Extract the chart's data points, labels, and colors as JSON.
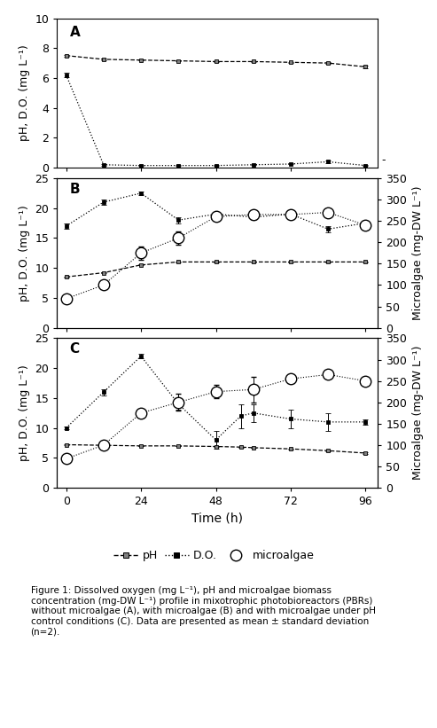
{
  "time_A": [
    0,
    12,
    24,
    36,
    48,
    60,
    72,
    84,
    96
  ],
  "pH_A": [
    7.5,
    7.25,
    7.2,
    7.15,
    7.1,
    7.1,
    7.05,
    7.0,
    6.75
  ],
  "pH_A_err": [
    0.05,
    0.05,
    0.03,
    0.03,
    0.03,
    0.03,
    0.03,
    0.05,
    0.1
  ],
  "DO_A": [
    6.2,
    0.2,
    0.15,
    0.15,
    0.15,
    0.2,
    0.25,
    0.4,
    0.15
  ],
  "DO_A_err": [
    0.15,
    0.05,
    0.02,
    0.02,
    0.02,
    0.02,
    0.03,
    0.1,
    0.03
  ],
  "time_B": [
    0,
    12,
    24,
    36,
    48,
    60,
    72,
    84,
    96
  ],
  "pH_B": [
    8.5,
    9.2,
    10.5,
    11.0,
    11.0,
    11.0,
    11.0,
    11.0,
    11.0
  ],
  "pH_B_err": [
    0.1,
    0.1,
    0.1,
    0.1,
    0.1,
    0.1,
    0.1,
    0.1,
    0.1
  ],
  "DO_B": [
    17.0,
    21.0,
    22.5,
    18.0,
    19.0,
    18.5,
    19.0,
    16.5,
    17.5
  ],
  "DO_B_err": [
    0.5,
    0.5,
    0.3,
    0.5,
    0.4,
    0.4,
    0.5,
    0.5,
    0.4
  ],
  "time_micro_B": [
    0,
    12,
    24,
    36,
    48,
    60,
    72,
    84,
    96
  ],
  "micro_B": [
    68,
    100,
    175,
    210,
    260,
    265,
    265,
    270,
    240
  ],
  "micro_B_err": [
    5,
    8,
    15,
    15,
    10,
    10,
    10,
    10,
    10
  ],
  "time_C": [
    0,
    12,
    24,
    36,
    48,
    56,
    60,
    72,
    84,
    96
  ],
  "pH_C": [
    7.2,
    7.1,
    7.0,
    7.0,
    6.9,
    6.8,
    6.7,
    6.5,
    6.2,
    5.8
  ],
  "pH_C_err": [
    0.05,
    0.05,
    0.03,
    0.03,
    0.03,
    0.05,
    0.05,
    0.05,
    0.1,
    0.1
  ],
  "DO_C_time": [
    0,
    12,
    24,
    36,
    48,
    56,
    60,
    72,
    84,
    96
  ],
  "DO_C": [
    10.0,
    16.0,
    22.0,
    14.0,
    8.0,
    12.0,
    12.5,
    11.5,
    11.0,
    11.0
  ],
  "DO_C_err": [
    0.2,
    0.5,
    0.4,
    1.0,
    1.5,
    2.0,
    1.5,
    1.5,
    1.5,
    0.4
  ],
  "time_micro_C": [
    0,
    12,
    24,
    36,
    48,
    60,
    72,
    84,
    96
  ],
  "micro_C": [
    68,
    100,
    175,
    200,
    225,
    230,
    255,
    265,
    250
  ],
  "micro_C_err": [
    5,
    8,
    10,
    20,
    15,
    30,
    10,
    10,
    10
  ],
  "figsize": [
    4.93,
    8.21
  ],
  "dpi": 100,
  "xlabel": "Time (h)",
  "ylabel_left": "pH, D.O. (mg L⁻¹)",
  "ylabel_right": "Microalgae (mg-DW L⁻¹)",
  "xticks": [
    0,
    24,
    48,
    72,
    96
  ],
  "xlim": [
    -3,
    100
  ],
  "ylim_A": [
    0,
    10
  ],
  "yticks_A": [
    0,
    2,
    4,
    6,
    8,
    10
  ],
  "ylim_BC": [
    0,
    25
  ],
  "yticks_BC": [
    0,
    5,
    10,
    15,
    20,
    25
  ],
  "ylim_right": [
    0,
    350
  ],
  "yticks_right": [
    0,
    50,
    100,
    150,
    200,
    250,
    300,
    350
  ],
  "panel_labels": [
    "A",
    "B",
    "C"
  ],
  "font_size": 9,
  "caption": "Figure 1: Dissolved oxygen (mg L⁻¹), pH and microalgae biomass\nconcentration (mg-DW L⁻¹) profile in mixotrophic photobioreactors (PBRs)\nwithout microalgae (A), with microalgae (B) and with microalgae under pH\ncontrol conditions (C). Data are presented as mean ± standard deviation\n(n=2)."
}
